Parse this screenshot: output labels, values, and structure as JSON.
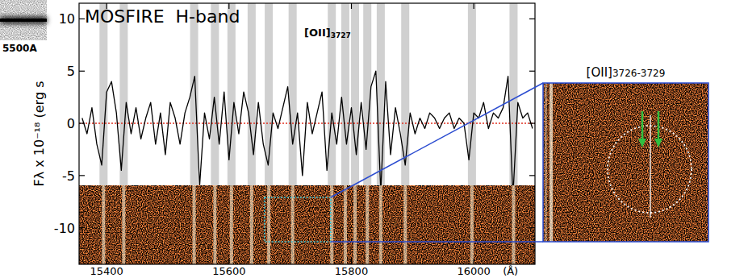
{
  "chart_data": {
    "type": "line",
    "title": "MOSFIRE  H-band",
    "x_label": "(Å)",
    "y_label": "Fλ x 10⁻¹⁸ (erg s",
    "color": "#000000",
    "xlim": [
      15355,
      16100
    ],
    "xticks": [
      15400,
      15600,
      15800,
      16000
    ],
    "ylim": [
      -13.5,
      11.5
    ],
    "yticks": [
      -10,
      -5,
      0,
      5,
      10
    ],
    "x": [
      15360,
      15368,
      15376,
      15384,
      15392,
      15400,
      15408,
      15416,
      15424,
      15432,
      15440,
      15448,
      15456,
      15464,
      15472,
      15480,
      15488,
      15496,
      15504,
      15512,
      15520,
      15528,
      15536,
      15544,
      15552,
      15560,
      15568,
      15576,
      15584,
      15592,
      15600,
      15608,
      15616,
      15624,
      15632,
      15640,
      15648,
      15656,
      15664,
      15672,
      15680,
      15688,
      15696,
      15704,
      15712,
      15720,
      15728,
      15736,
      15744,
      15752,
      15760,
      15768,
      15776,
      15784,
      15792,
      15800,
      15808,
      15816,
      15824,
      15832,
      15840,
      15848,
      15856,
      15864,
      15872,
      15880,
      15888,
      15896,
      15904,
      15912,
      15920,
      15928,
      15936,
      15944,
      15952,
      15960,
      15968,
      15976,
      15984,
      15992,
      16000,
      16008,
      16016,
      16024,
      16032,
      16040,
      16048,
      16056,
      16064,
      16072,
      16080,
      16088,
      16096
    ],
    "values": [
      0.5,
      -1,
      1.5,
      -2,
      -4,
      3,
      4,
      1,
      -4.5,
      2,
      -1,
      1.5,
      -1.5,
      0.5,
      2,
      -2,
      1,
      -3,
      2,
      0.5,
      -2,
      1,
      2.5,
      4.5,
      -6,
      1,
      -1.5,
      2.5,
      -2,
      3,
      -3.5,
      2,
      -1,
      3,
      1,
      -3,
      2,
      -2,
      -4,
      1,
      -0.5,
      1.5,
      3.5,
      -2,
      1,
      -5,
      2,
      -1,
      1,
      3,
      -4.5,
      1,
      -2,
      2.5,
      -2,
      1.5,
      -3,
      2,
      -2.5,
      3.5,
      5,
      -6.5,
      4,
      -3,
      1.5,
      -1,
      -4,
      1,
      -1,
      0.5,
      -0.5,
      1,
      0.5,
      -0.5,
      0.5,
      1,
      -0.5,
      0.5,
      0,
      -3.5,
      1,
      0.5,
      2,
      -0.5,
      1,
      0.5,
      1.5,
      4.5,
      -7,
      2,
      0.5,
      1,
      -0.5
    ],
    "hline": {
      "value": 0,
      "color": "#e03020"
    },
    "sky_lines": [
      15395,
      15428,
      15543,
      15577,
      15604,
      15637,
      15665,
      15704,
      15768,
      15790,
      15806,
      15826,
      15848,
      15888,
      15997,
      16065
    ],
    "annotations": [
      {
        "text": "[OII]",
        "subscript": "3727",
        "x": 15723,
        "y": 8.3
      }
    ],
    "zoom": {
      "xlim": [
        15658,
        15766
      ],
      "title": "[OII]",
      "subscript": "3726-3729"
    },
    "thumbnail": {
      "label": "5500A"
    }
  }
}
